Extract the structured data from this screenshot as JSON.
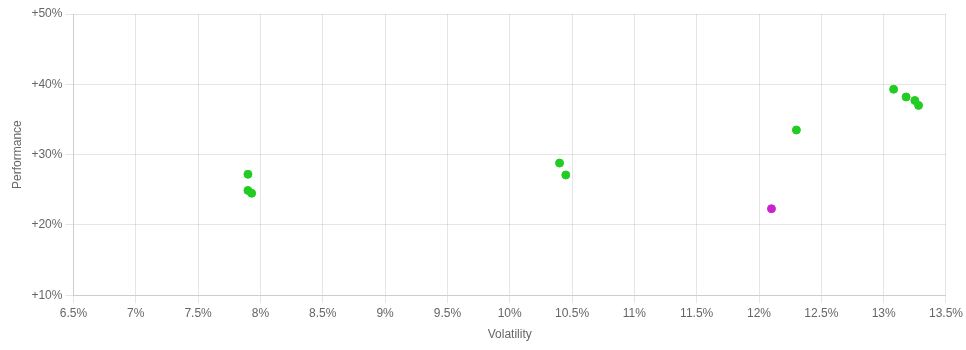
{
  "chart_data": {
    "type": "scatter",
    "x_label": "Volatility",
    "y_label": "Performance",
    "series": [
      {
        "color": "#22cc22",
        "x": [
          0.079,
          0.079,
          0.0793,
          0.104,
          0.1045,
          0.123,
          0.1308,
          0.1318,
          0.1325,
          0.1328
        ],
        "values": [
          0.272,
          0.249,
          0.245,
          0.288,
          0.271,
          0.335,
          0.393,
          0.382,
          0.377,
          0.37
        ]
      },
      {
        "color": "#cc22cc",
        "x": [
          0.121
        ],
        "values": [
          0.223
        ]
      }
    ],
    "xlim": [
      0.065,
      0.135
    ],
    "ylim": [
      0.1,
      0.5
    ],
    "xticks": [
      {
        "value": 0.065,
        "label": "6.5%"
      },
      {
        "value": 0.07,
        "label": "7%"
      },
      {
        "value": 0.075,
        "label": "7.5%"
      },
      {
        "value": 0.08,
        "label": "8%"
      },
      {
        "value": 0.085,
        "label": "8.5%"
      },
      {
        "value": 0.09,
        "label": "9%"
      },
      {
        "value": 0.095,
        "label": "9.5%"
      },
      {
        "value": 0.1,
        "label": "10%"
      },
      {
        "value": 0.105,
        "label": "10.5%"
      },
      {
        "value": 0.11,
        "label": "11%"
      },
      {
        "value": 0.115,
        "label": "11.5%"
      },
      {
        "value": 0.12,
        "label": "12%"
      },
      {
        "value": 0.125,
        "label": "12.5%"
      },
      {
        "value": 0.13,
        "label": "13%"
      },
      {
        "value": 0.135,
        "label": "13.5%"
      }
    ],
    "yticks": [
      {
        "value": 0.1,
        "label": "+10%"
      },
      {
        "value": 0.2,
        "label": "+20%"
      },
      {
        "value": 0.3,
        "label": "+30%"
      },
      {
        "value": 0.4,
        "label": "+40%"
      },
      {
        "value": 0.5,
        "label": "+50%"
      }
    ],
    "grid": true
  }
}
